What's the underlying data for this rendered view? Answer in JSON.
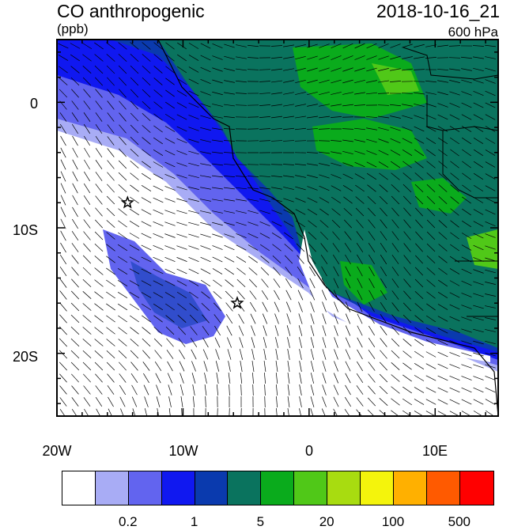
{
  "header": {
    "title": "CO anthropogenic",
    "units": "(ppb)",
    "datetime": "2018-10-16_21",
    "level": "600 hPa"
  },
  "axes": {
    "lon_labels": [
      "20W",
      "10W",
      "0",
      "10E"
    ],
    "lat_labels": [
      "0",
      "10S",
      "20S"
    ]
  },
  "colorbar": {
    "colors": [
      "#ffffff",
      "#a8acf5",
      "#6264ef",
      "#1018f0",
      "#0a3aae",
      "#0a735e",
      "#0aab1c",
      "#50c818",
      "#a8dc10",
      "#f4f40c",
      "#ffb000",
      "#ff5a00",
      "#ff0000"
    ],
    "labels": [
      "0.2",
      "1",
      "5",
      "20",
      "100",
      "500"
    ]
  },
  "markers": [
    {
      "name": "star-marker-1",
      "lon": -14.4,
      "lat": -8.0
    },
    {
      "name": "star-marker-2",
      "lon": -5.7,
      "lat": -16.0
    }
  ]
}
